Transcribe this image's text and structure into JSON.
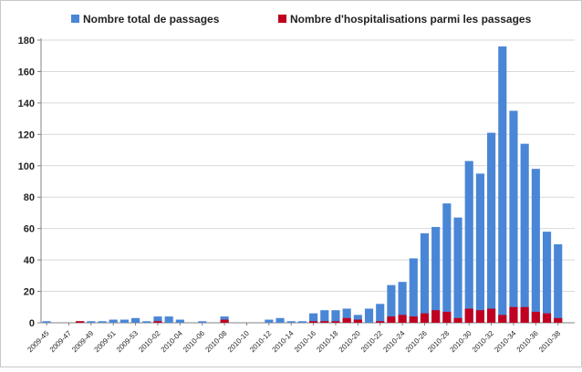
{
  "chart_data": {
    "type": "bar",
    "stacked": false,
    "overlapping": true,
    "ylim": [
      0,
      180
    ],
    "yticks": [
      0,
      20,
      40,
      60,
      80,
      100,
      120,
      140,
      160,
      180
    ],
    "grid": true,
    "legend_position": "top",
    "categories": [
      "2009-45",
      "2009-46",
      "2009-47",
      "2009-48",
      "2009-49",
      "2009-50",
      "2009-51",
      "2009-52",
      "2009-53",
      "2010-01",
      "2010-02",
      "2010-03",
      "2010-04",
      "2010-05",
      "2010-06",
      "2010-07",
      "2010-08",
      "2010-09",
      "2010-10",
      "2010-11",
      "2010-12",
      "2010-13",
      "2010-14",
      "2010-15",
      "2010-16",
      "2010-17",
      "2010-18",
      "2010-19",
      "2010-20",
      "2010-21",
      "2010-22",
      "2010-23",
      "2010-24",
      "2010-25",
      "2010-26",
      "2010-27",
      "2010-28",
      "2010-29",
      "2010-30",
      "2010-31",
      "2010-32",
      "2010-33",
      "2010-34",
      "2010-35",
      "2010-36",
      "2010-37",
      "2010-38",
      "2010-39"
    ],
    "tick_labels": [
      "2009-45",
      "",
      "2009-47",
      "",
      "2009-49",
      "",
      "2009-51",
      "",
      "2009-53",
      "",
      "2010-02",
      "",
      "2010-04",
      "",
      "2010-06",
      "",
      "2010-08",
      "",
      "2010-10",
      "",
      "2010-12",
      "",
      "2010-14",
      "",
      "2010-16",
      "",
      "2010-18",
      "",
      "2010-20",
      "",
      "2010-22",
      "",
      "2010-24",
      "",
      "2010-26",
      "",
      "2010-28",
      "",
      "2010-30",
      "",
      "2010-32",
      "",
      "2010-34",
      "",
      "2010-36",
      "",
      "2010-38",
      ""
    ],
    "series": [
      {
        "name": "Nombre total de passages",
        "color": "#4a86d6",
        "values": [
          1,
          0,
          0,
          1,
          1,
          1,
          2,
          2,
          3,
          1,
          4,
          4,
          2,
          0,
          1,
          0,
          4,
          0,
          0,
          0,
          2,
          3,
          1,
          1,
          6,
          8,
          8,
          9,
          5,
          9,
          12,
          24,
          26,
          41,
          57,
          61,
          76,
          67,
          103,
          95,
          121,
          176,
          135,
          114,
          98,
          58,
          50,
          0
        ]
      },
      {
        "name": "Nombre d'hospitalisations parmi les passages",
        "color": "#c00020",
        "values": [
          0,
          0,
          0,
          1,
          0,
          0,
          0,
          0,
          0,
          0,
          1,
          0,
          0,
          0,
          0,
          0,
          2,
          0,
          0,
          0,
          0,
          0,
          0,
          0,
          1,
          1,
          1,
          3,
          2,
          0,
          1,
          4,
          5,
          4,
          6,
          8,
          7,
          3,
          9,
          8,
          9,
          5,
          10,
          10,
          7,
          6,
          3,
          0
        ]
      }
    ]
  }
}
